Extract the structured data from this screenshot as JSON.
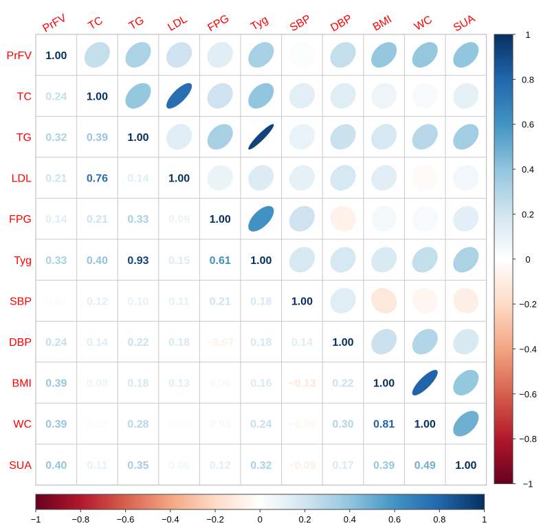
{
  "chart_data": {
    "type": "heatmap",
    "variables": [
      "PrFV",
      "TC",
      "TG",
      "LDL",
      "FPG",
      "Tyg",
      "SBP",
      "DBP",
      "BMI",
      "WC",
      "SUA"
    ],
    "matrix": [
      [
        1.0,
        0.24,
        0.32,
        0.21,
        0.14,
        0.33,
        0.02,
        0.24,
        0.39,
        0.39,
        0.4
      ],
      [
        0.24,
        1.0,
        0.39,
        0.76,
        0.21,
        0.4,
        0.12,
        0.14,
        0.08,
        0.03,
        0.11
      ],
      [
        0.32,
        0.39,
        1.0,
        0.14,
        0.33,
        0.93,
        0.1,
        0.22,
        0.18,
        0.28,
        0.35
      ],
      [
        0.21,
        0.76,
        0.14,
        1.0,
        0.09,
        0.15,
        0.11,
        0.18,
        0.13,
        -0.03,
        0.06
      ],
      [
        0.14,
        0.21,
        0.33,
        0.09,
        1.0,
        0.61,
        0.21,
        -0.07,
        0.05,
        0.04,
        0.12
      ],
      [
        0.33,
        0.4,
        0.93,
        0.15,
        0.61,
        1.0,
        0.18,
        0.18,
        0.16,
        0.24,
        0.32
      ],
      [
        0.02,
        0.12,
        0.1,
        0.11,
        0.21,
        0.18,
        1.0,
        0.14,
        -0.13,
        -0.05,
        -0.09
      ],
      [
        0.24,
        0.14,
        0.22,
        0.18,
        -0.07,
        0.18,
        0.14,
        1.0,
        0.22,
        0.3,
        0.17
      ],
      [
        0.39,
        0.08,
        0.18,
        0.13,
        0.05,
        0.16,
        -0.13,
        0.22,
        1.0,
        0.81,
        0.39
      ],
      [
        0.39,
        0.03,
        0.28,
        -0.03,
        0.04,
        0.24,
        -0.05,
        0.3,
        0.81,
        1.0,
        0.49
      ],
      [
        0.4,
        0.11,
        0.35,
        0.06,
        0.12,
        0.32,
        -0.09,
        0.17,
        0.39,
        0.49,
        1.0
      ]
    ],
    "upper_method": "ellipse",
    "lower_method": "number",
    "range": [
      -1,
      1
    ],
    "colorbar_ticks": [
      -1,
      -0.8,
      -0.6,
      -0.4,
      -0.2,
      0,
      0.2,
      0.4,
      0.6,
      0.8,
      1
    ],
    "colorbars": [
      "right",
      "bottom"
    ],
    "label_color": "#ff0000",
    "palette": [
      "#67001f",
      "#b2182b",
      "#d6604d",
      "#f4a582",
      "#fddbc7",
      "#ffffff",
      "#d1e5f0",
      "#92c5de",
      "#4393c3",
      "#2166ac",
      "#053061"
    ]
  }
}
